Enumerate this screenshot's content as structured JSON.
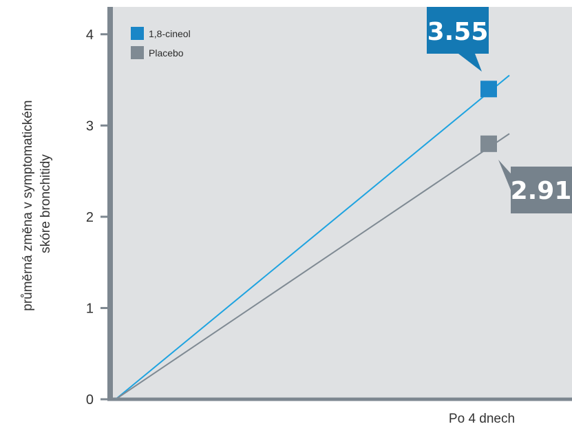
{
  "chart_data": {
    "type": "line",
    "xlabel": "Po 4 dnech",
    "ylabel": "průměrná změna v symptomatickém skóre bronchitidy",
    "ylabel_lines": [
      "průměrná změna v symptomatickém",
      "skóre bronchitidy"
    ],
    "ylim": [
      0,
      4.3
    ],
    "yticks": [
      "0",
      "1",
      "2",
      "3",
      "4"
    ],
    "grid": false,
    "legend_position": "top-left",
    "x": [
      0,
      4
    ],
    "series": [
      {
        "name": "1,8-cineol",
        "values": [
          0,
          3.55
        ],
        "color": "#1ea3e0",
        "callout": "3.55"
      },
      {
        "name": "Placebo",
        "values": [
          0,
          2.91
        ],
        "color": "#7f8a93",
        "callout": "2.91"
      }
    ]
  },
  "colors": {
    "plot_background": "#dfe1e3",
    "axis": "#7d8790",
    "cineol_callout": "#1479b4",
    "placebo_callout": "#76828c"
  }
}
